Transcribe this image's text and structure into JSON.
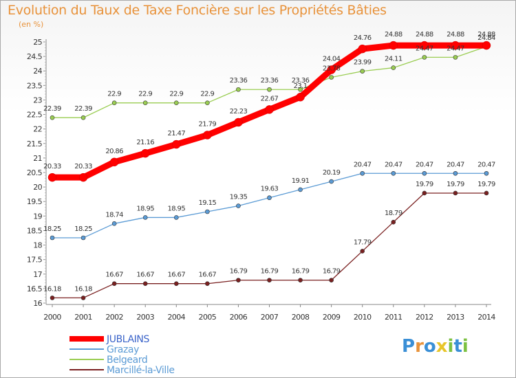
{
  "header": {
    "title": "Evolution du Taux de Taxe Foncière sur les Propriétés Bâties",
    "subtitle": "(en %)"
  },
  "chart_data": {
    "type": "line",
    "title": "Evolution du Taux de Taxe Foncière sur les Propriétés Bâties",
    "ylabel": "(en %)",
    "xlabel": "",
    "x": [
      "2000",
      "2001",
      "2002",
      "2003",
      "2004",
      "2005",
      "2006",
      "2007",
      "2008",
      "2009",
      "2010",
      "2011",
      "2012",
      "2013",
      "2014"
    ],
    "ylim": [
      16,
      25
    ],
    "ytick_step": 0.5,
    "yticks": [
      "16",
      "16.5",
      "17",
      "17.5",
      "18",
      "18.5",
      "19",
      "19.5",
      "20",
      "20.5",
      "21",
      "21.5",
      "22",
      "22.5",
      "23",
      "23.5",
      "24",
      "24.5",
      "25"
    ],
    "grid": false,
    "legend_placement": "bottom-left",
    "series": [
      {
        "name": "JUBLAINS",
        "color": "#ff0000",
        "highlight": true,
        "values": [
          20.33,
          20.33,
          20.86,
          21.16,
          21.47,
          21.79,
          22.23,
          22.67,
          23.1,
          24.04,
          24.76,
          24.88,
          24.88,
          24.88,
          24.88
        ]
      },
      {
        "name": "Grazay",
        "color": "#5b9bd5",
        "values": [
          18.25,
          18.25,
          18.74,
          18.95,
          18.95,
          19.15,
          19.35,
          19.63,
          19.91,
          20.19,
          20.47,
          20.47,
          20.47,
          20.47,
          20.47
        ]
      },
      {
        "name": "Belgeard",
        "color": "#9acd52",
        "values": [
          22.39,
          22.39,
          22.9,
          22.9,
          22.9,
          22.9,
          23.36,
          23.36,
          23.36,
          23.78,
          23.99,
          24.11,
          24.47,
          24.47,
          24.84
        ]
      },
      {
        "name": "Marcillé-la-Ville",
        "color": "#7a2020",
        "values": [
          16.18,
          16.18,
          16.67,
          16.67,
          16.67,
          16.67,
          16.79,
          16.79,
          16.79,
          16.79,
          17.79,
          18.79,
          19.79,
          19.79,
          19.79
        ]
      }
    ],
    "data_labels": [
      [
        "20.33",
        "20.33",
        "20.86",
        "21.16",
        "21.47",
        "21.79",
        "22.23",
        "22.67",
        "23.1",
        "24.04",
        "24.76",
        "24.88",
        "24.88",
        "24.88",
        "24.88"
      ],
      [
        "18.25",
        "18.25",
        "18.74",
        "18.95",
        "18.95",
        "19.15",
        "19.35",
        "19.63",
        "19.91",
        "20.19",
        "20.47",
        "20.47",
        "20.47",
        "20.47",
        "20.47"
      ],
      [
        "22.39",
        "22.39",
        "22.9",
        "22.9",
        "22.9",
        "22.9",
        "23.36",
        "23.36",
        "23.36",
        "23.78",
        "23.99",
        "24.11",
        "24.47",
        "24.47",
        "24.84"
      ],
      [
        "16.18",
        "16.18",
        "16.67",
        "16.67",
        "16.67",
        "16.67",
        "16.79",
        "16.79",
        "16.79",
        "16.79",
        "17.79",
        "18.79",
        "19.79",
        "19.79",
        "19.79"
      ]
    ]
  },
  "logo": {
    "letters": [
      "P",
      "r",
      "o",
      "x",
      "i",
      "t",
      "i"
    ],
    "colors": [
      "#3a8fd6",
      "#e8923a",
      "#3a8fd6",
      "#e8c52a",
      "#7cc142",
      "#3a8fd6",
      "#7cc142"
    ]
  }
}
